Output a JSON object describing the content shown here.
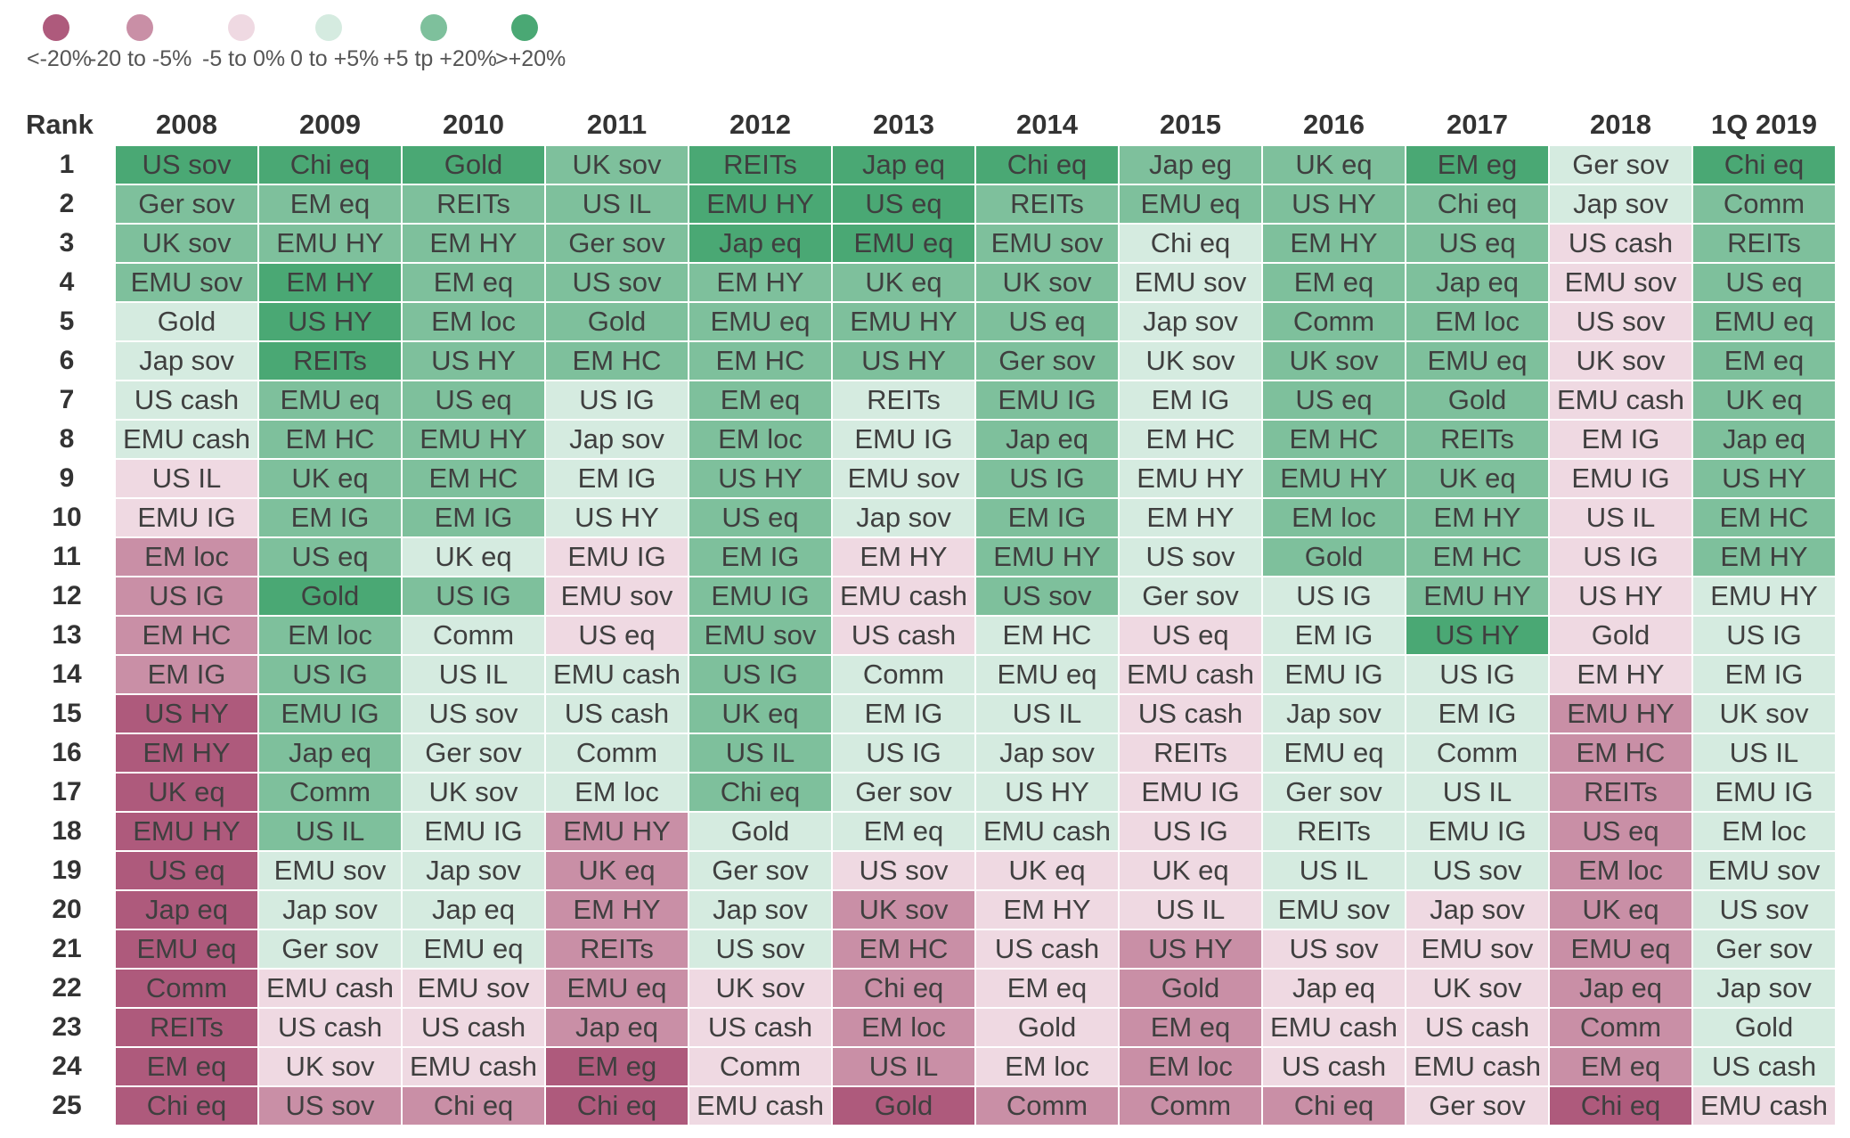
{
  "legend": [
    {
      "label": "<-20%",
      "color": "#ae5a7c"
    },
    {
      "label": "-20  to  -5%",
      "color": "#c98fa6"
    },
    {
      "label": "-5 to 0%",
      "color": "#efd9e2"
    },
    {
      "label": "0 to +5%",
      "color": "#d5ebe0"
    },
    {
      "label": "+5 tp +20%",
      "color": "#7ec09c"
    },
    {
      "label": ">+20%",
      "color": "#4aa874"
    }
  ],
  "chart_data": {
    "type": "table",
    "rank_header": "Rank",
    "columns": [
      "2008",
      "2009",
      "2010",
      "2011",
      "2012",
      "2013",
      "2014",
      "2015",
      "2016",
      "2017",
      "2018",
      "1Q 2019"
    ],
    "ranks": [
      "1",
      "2",
      "3",
      "4",
      "5",
      "6",
      "7",
      "8",
      "9",
      "10",
      "11",
      "12",
      "13",
      "14",
      "15",
      "16",
      "17",
      "18",
      "19",
      "20",
      "21",
      "22",
      "23",
      "24",
      "25"
    ],
    "rows": [
      [
        "US sov",
        "Chi eq",
        "Gold",
        "UK sov",
        "REITs",
        "Jap eq",
        "Chi eq",
        "Jap eg",
        "UK eq",
        "EM eg",
        "Ger sov",
        "Chi eq"
      ],
      [
        "Ger sov",
        "EM eq",
        "REITs",
        "US IL",
        "EMU HY",
        "US eq",
        "REITs",
        "EMU eq",
        "US HY",
        "Chi eq",
        "Jap sov",
        "Comm"
      ],
      [
        "UK sov",
        "EMU HY",
        "EM HY",
        "Ger sov",
        "Jap eq",
        "EMU eq",
        "EMU sov",
        "Chi eq",
        "EM HY",
        "US eq",
        "US cash",
        "REITs"
      ],
      [
        "EMU sov",
        "EM HY",
        "EM eq",
        "US sov",
        "EM HY",
        "UK eq",
        "UK sov",
        "EMU sov",
        "EM eq",
        "Jap eq",
        "EMU sov",
        "US eq"
      ],
      [
        "Gold",
        "US HY",
        "EM loc",
        "Gold",
        "EMU eq",
        "EMU HY",
        "US eq",
        "Jap sov",
        "Comm",
        "EM loc",
        "US sov",
        "EMU eq"
      ],
      [
        "Jap sov",
        "REITs",
        "US HY",
        "EM HC",
        "EM HC",
        "US HY",
        "Ger sov",
        "UK sov",
        "UK sov",
        "EMU eq",
        "UK sov",
        "EM eq"
      ],
      [
        "US cash",
        "EMU eq",
        "US eq",
        "US IG",
        "EM eq",
        "REITs",
        "EMU IG",
        "EM IG",
        "US eq",
        "Gold",
        "EMU cash",
        "UK eq"
      ],
      [
        "EMU cash",
        "EM HC",
        "EMU HY",
        "Jap sov",
        "EM loc",
        "EMU IG",
        "Jap eq",
        "EM HC",
        "EM HC",
        "REITs",
        "EM IG",
        "Jap eq"
      ],
      [
        "US IL",
        "UK eq",
        "EM HC",
        "EM IG",
        "US HY",
        "EMU sov",
        "US IG",
        "EMU HY",
        "EMU HY",
        "UK eq",
        "EMU IG",
        "US HY"
      ],
      [
        "EMU IG",
        "EM IG",
        "EM IG",
        "US HY",
        "US eq",
        "Jap sov",
        "EM IG",
        "EM HY",
        "EM loc",
        "EM HY",
        "US IL",
        "EM HC"
      ],
      [
        "EM loc",
        "US eq",
        "UK eq",
        "EMU IG",
        "EM IG",
        "EM HY",
        "EMU HY",
        "US sov",
        "Gold",
        "EM HC",
        "US IG",
        "EM HY"
      ],
      [
        "US IG",
        "Gold",
        "US IG",
        "EMU sov",
        "EMU IG",
        "EMU cash",
        "US sov",
        "Ger sov",
        "US IG",
        "EMU HY",
        "US HY",
        "EMU HY"
      ],
      [
        "EM HC",
        "EM loc",
        "Comm",
        "US eq",
        "EMU sov",
        "US cash",
        "EM HC",
        "US eq",
        "EM IG",
        "US HY",
        "Gold",
        "US IG"
      ],
      [
        "EM IG",
        "US IG",
        "US IL",
        "EMU cash",
        "US IG",
        "Comm",
        "EMU eq",
        "EMU cash",
        "EMU IG",
        "US IG",
        "EM HY",
        "EM IG"
      ],
      [
        "US HY",
        "EMU IG",
        "US sov",
        "US cash",
        "UK eq",
        "EM IG",
        "US IL",
        "US cash",
        "Jap sov",
        "EM IG",
        "EMU HY",
        "UK sov"
      ],
      [
        "EM HY",
        "Jap eq",
        "Ger sov",
        "Comm",
        "US IL",
        "US IG",
        "Jap sov",
        "REITs",
        "EMU eq",
        "Comm",
        "EM HC",
        "US IL"
      ],
      [
        "UK eq",
        "Comm",
        "UK sov",
        "EM loc",
        "Chi eq",
        "Ger sov",
        "US HY",
        "EMU IG",
        "Ger sov",
        "US IL",
        "REITs",
        "EMU IG"
      ],
      [
        "EMU HY",
        "US IL",
        "EMU IG",
        "EMU HY",
        "Gold",
        "EM eq",
        "EMU cash",
        "US IG",
        "REITs",
        "EMU IG",
        "US eq",
        "EM loc"
      ],
      [
        "US eq",
        "EMU sov",
        "Jap sov",
        "UK eq",
        "Ger sov",
        "US sov",
        "UK eq",
        "UK eq",
        "US IL",
        "US sov",
        "EM loc",
        "EMU sov"
      ],
      [
        "Jap eq",
        "Jap sov",
        "Jap eq",
        "EM HY",
        "Jap sov",
        "UK sov",
        "EM HY",
        "US IL",
        "EMU sov",
        "Jap sov",
        "UK eq",
        "US sov"
      ],
      [
        "EMU eq",
        "Ger sov",
        "EMU eq",
        "REITs",
        "US sov",
        "EM HC",
        "US cash",
        "US HY",
        "US sov",
        "EMU sov",
        "EMU eq",
        "Ger sov"
      ],
      [
        "Comm",
        "EMU cash",
        "EMU sov",
        "EMU eq",
        "UK sov",
        "Chi eq",
        "EM eq",
        "Gold",
        "Jap eq",
        "UK sov",
        "Jap eq",
        "Jap sov"
      ],
      [
        "REITs",
        "US cash",
        "US cash",
        "Jap eq",
        "US cash",
        "EM loc",
        "Gold",
        "EM eq",
        "EMU cash",
        "US cash",
        "Comm",
        "Gold"
      ],
      [
        "EM eq",
        "UK sov",
        "EMU cash",
        "EM eg",
        "Comm",
        "US IL",
        "EM loc",
        "EM loc",
        "US cash",
        "EMU cash",
        "EM eq",
        "US cash"
      ],
      [
        "Chi eq",
        "US sov",
        "Chi eq",
        "Chi eq",
        "EMU cash",
        "Gold",
        "Comm",
        "Comm",
        "Chi eq",
        "Ger sov",
        "Chi eq",
        "EMU cash"
      ]
    ],
    "categories": [
      [
        5,
        5,
        5,
        4,
        5,
        5,
        5,
        4,
        4,
        5,
        3,
        5
      ],
      [
        4,
        4,
        4,
        4,
        5,
        5,
        4,
        4,
        4,
        4,
        3,
        4
      ],
      [
        4,
        4,
        4,
        4,
        5,
        5,
        4,
        3,
        4,
        4,
        2,
        4
      ],
      [
        4,
        5,
        4,
        4,
        4,
        4,
        4,
        3,
        4,
        4,
        2,
        4
      ],
      [
        3,
        5,
        4,
        4,
        4,
        4,
        4,
        3,
        4,
        4,
        2,
        4
      ],
      [
        3,
        5,
        4,
        4,
        4,
        4,
        4,
        3,
        4,
        4,
        2,
        4
      ],
      [
        3,
        4,
        4,
        3,
        4,
        3,
        4,
        3,
        4,
        4,
        2,
        4
      ],
      [
        3,
        4,
        4,
        3,
        4,
        3,
        4,
        3,
        4,
        4,
        2,
        4
      ],
      [
        2,
        4,
        4,
        3,
        4,
        3,
        4,
        3,
        4,
        4,
        2,
        4
      ],
      [
        2,
        4,
        4,
        3,
        4,
        3,
        4,
        3,
        4,
        4,
        2,
        4
      ],
      [
        1,
        4,
        3,
        2,
        4,
        2,
        4,
        3,
        4,
        4,
        2,
        4
      ],
      [
        1,
        5,
        4,
        2,
        4,
        2,
        4,
        3,
        3,
        4,
        2,
        3
      ],
      [
        1,
        4,
        3,
        2,
        4,
        2,
        3,
        2,
        3,
        5,
        2,
        3
      ],
      [
        1,
        4,
        3,
        3,
        4,
        3,
        3,
        2,
        3,
        3,
        2,
        3
      ],
      [
        0,
        4,
        3,
        3,
        4,
        3,
        3,
        2,
        3,
        3,
        1,
        3
      ],
      [
        0,
        4,
        3,
        3,
        4,
        3,
        3,
        2,
        3,
        3,
        1,
        3
      ],
      [
        0,
        4,
        3,
        3,
        4,
        3,
        3,
        2,
        3,
        3,
        1,
        3
      ],
      [
        0,
        4,
        3,
        1,
        3,
        3,
        3,
        2,
        3,
        3,
        1,
        3
      ],
      [
        0,
        3,
        3,
        1,
        3,
        2,
        2,
        2,
        3,
        3,
        1,
        3
      ],
      [
        0,
        3,
        3,
        1,
        3,
        1,
        2,
        2,
        3,
        2,
        1,
        3
      ],
      [
        0,
        3,
        3,
        1,
        3,
        1,
        2,
        1,
        2,
        2,
        1,
        3
      ],
      [
        0,
        2,
        2,
        1,
        2,
        1,
        2,
        1,
        2,
        2,
        1,
        3
      ],
      [
        0,
        2,
        2,
        1,
        2,
        1,
        2,
        1,
        2,
        2,
        1,
        3
      ],
      [
        0,
        2,
        2,
        0,
        2,
        1,
        2,
        1,
        2,
        2,
        1,
        3
      ],
      [
        0,
        1,
        1,
        0,
        2,
        0,
        1,
        1,
        1,
        2,
        0,
        2
      ]
    ]
  }
}
